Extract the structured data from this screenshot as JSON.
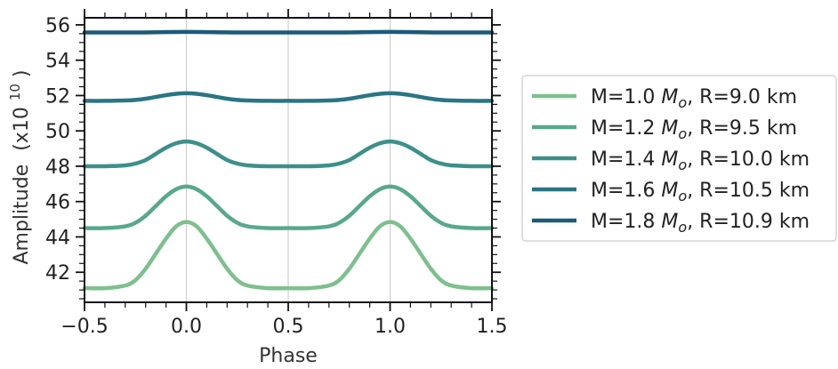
{
  "chart_data": {
    "type": "line",
    "xlabel": "Phase",
    "ylabel": "Amplitude",
    "ylabel_exponent_base": "(x10",
    "ylabel_exponent": "10",
    "ylabel_close": ")",
    "xlim": [
      -0.5,
      1.5
    ],
    "ylim": [
      40.3,
      56.4
    ],
    "x_ticks": [
      -0.5,
      0.0,
      0.5,
      1.0,
      1.5
    ],
    "x_tick_labels": [
      "−0.5",
      "0.0",
      "0.5",
      "1.0",
      "1.5"
    ],
    "y_ticks": [
      42,
      44,
      46,
      48,
      50,
      52,
      54,
      56
    ],
    "y_tick_labels": [
      "42",
      "44",
      "46",
      "48",
      "50",
      "52",
      "54",
      "56"
    ],
    "grid": "vertical lines at x ticks",
    "legend_position": "right",
    "series": [
      {
        "name": "M=1.0 M_o, R=9.0 km",
        "legend_prefix": "M=1.0 ",
        "legend_m": "M",
        "legend_sub": "o",
        "legend_suffix": ", R=9.0 km",
        "color": "#7fbf8f",
        "baseline": 41.1,
        "peak": 44.85,
        "x": [
          -0.5,
          -0.4,
          -0.3,
          -0.25,
          -0.2,
          -0.15,
          -0.1,
          -0.05,
          0.0,
          0.05,
          0.1,
          0.15,
          0.2,
          0.25,
          0.3,
          0.4,
          0.5,
          0.6,
          0.7,
          0.75,
          0.8,
          0.85,
          0.9,
          0.95,
          1.0,
          1.05,
          1.1,
          1.15,
          1.2,
          1.25,
          1.3,
          1.4,
          1.5
        ],
        "y": [
          41.1,
          41.1,
          41.25,
          41.55,
          42.2,
          43.05,
          43.9,
          44.6,
          44.85,
          44.6,
          43.9,
          43.05,
          42.2,
          41.55,
          41.25,
          41.1,
          41.1,
          41.1,
          41.25,
          41.55,
          42.2,
          43.05,
          43.9,
          44.6,
          44.85,
          44.6,
          43.9,
          43.05,
          42.2,
          41.55,
          41.25,
          41.1,
          41.1
        ]
      },
      {
        "name": "M=1.2 M_o, R=9.5 km",
        "legend_prefix": "M=1.2 ",
        "legend_m": "M",
        "legend_sub": "o",
        "legend_suffix": ", R=9.5 km",
        "color": "#5aa88c",
        "x": [
          -0.5,
          -0.4,
          -0.3,
          -0.25,
          -0.2,
          -0.15,
          -0.1,
          -0.05,
          0.0,
          0.05,
          0.1,
          0.15,
          0.2,
          0.25,
          0.3,
          0.4,
          0.5,
          0.6,
          0.7,
          0.75,
          0.8,
          0.85,
          0.9,
          0.95,
          1.0,
          1.05,
          1.1,
          1.15,
          1.2,
          1.25,
          1.3,
          1.4,
          1.5
        ],
        "y": [
          44.5,
          44.5,
          44.6,
          44.8,
          45.2,
          45.75,
          46.3,
          46.7,
          46.85,
          46.7,
          46.3,
          45.75,
          45.2,
          44.8,
          44.6,
          44.5,
          44.5,
          44.5,
          44.6,
          44.8,
          45.2,
          45.75,
          46.3,
          46.7,
          46.85,
          46.7,
          46.3,
          45.75,
          45.2,
          44.8,
          44.6,
          44.5,
          44.5
        ]
      },
      {
        "name": "M=1.4 M_o, R=10.0 km",
        "legend_prefix": "M=1.4 ",
        "legend_m": "M",
        "legend_sub": "o",
        "legend_suffix": ", R=10.0 km",
        "color": "#3d8f8a",
        "x": [
          -0.5,
          -0.4,
          -0.3,
          -0.25,
          -0.2,
          -0.15,
          -0.1,
          -0.05,
          0.0,
          0.05,
          0.1,
          0.15,
          0.2,
          0.25,
          0.3,
          0.4,
          0.5,
          0.6,
          0.7,
          0.75,
          0.8,
          0.85,
          0.9,
          0.95,
          1.0,
          1.05,
          1.1,
          1.15,
          1.2,
          1.25,
          1.3,
          1.4,
          1.5
        ],
        "y": [
          48.0,
          48.0,
          48.05,
          48.15,
          48.35,
          48.7,
          49.05,
          49.3,
          49.4,
          49.3,
          49.05,
          48.7,
          48.35,
          48.15,
          48.05,
          48.0,
          48.0,
          48.0,
          48.05,
          48.15,
          48.35,
          48.7,
          49.05,
          49.3,
          49.4,
          49.3,
          49.05,
          48.7,
          48.35,
          48.15,
          48.05,
          48.0,
          48.0
        ]
      },
      {
        "name": "M=1.6 M_o, R=10.5 km",
        "legend_prefix": "M=1.6 ",
        "legend_m": "M",
        "legend_sub": "o",
        "legend_suffix": ", R=10.5 km",
        "color": "#2a7585",
        "x": [
          -0.5,
          -0.4,
          -0.3,
          -0.25,
          -0.2,
          -0.15,
          -0.1,
          -0.05,
          0.0,
          0.05,
          0.1,
          0.15,
          0.2,
          0.25,
          0.3,
          0.4,
          0.5,
          0.6,
          0.7,
          0.75,
          0.8,
          0.85,
          0.9,
          0.95,
          1.0,
          1.05,
          1.1,
          1.15,
          1.2,
          1.25,
          1.3,
          1.4,
          1.5
        ],
        "y": [
          51.7,
          51.7,
          51.72,
          51.75,
          51.82,
          51.92,
          52.02,
          52.1,
          52.13,
          52.1,
          52.02,
          51.92,
          51.82,
          51.75,
          51.72,
          51.7,
          51.7,
          51.7,
          51.72,
          51.75,
          51.82,
          51.92,
          52.02,
          52.1,
          52.13,
          52.1,
          52.02,
          51.92,
          51.82,
          51.75,
          51.72,
          51.7,
          51.7
        ]
      },
      {
        "name": "M=1.8 M_o, R=10.9 km",
        "legend_prefix": "M=1.8 ",
        "legend_m": "M",
        "legend_sub": "o",
        "legend_suffix": ", R=10.9 km",
        "color": "#1d5a7a",
        "x": [
          -0.5,
          -0.25,
          0.0,
          0.25,
          0.5,
          0.75,
          1.0,
          1.25,
          1.5
        ],
        "y": [
          55.57,
          55.57,
          55.6,
          55.57,
          55.57,
          55.57,
          55.6,
          55.57,
          55.57
        ]
      }
    ]
  }
}
